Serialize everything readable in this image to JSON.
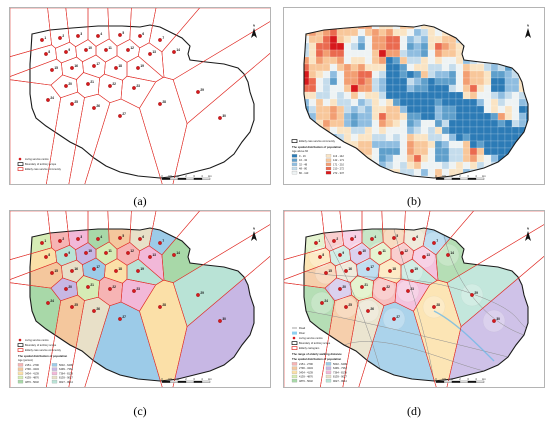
{
  "panels": [
    {
      "id": "a",
      "caption": "(a)",
      "legend": {
        "items": [
          "Living service centre",
          "Boundary of territory scope",
          "Elderly care service community"
        ]
      },
      "labels": [
        "1",
        "2",
        "3",
        "4",
        "5",
        "6",
        "7",
        "8",
        "9",
        "10",
        "11",
        "12",
        "13",
        "14",
        "15",
        "16",
        "17",
        "18",
        "19",
        "20",
        "21",
        "22",
        "23",
        "24",
        "25",
        "26",
        "27",
        "28",
        "29",
        "30"
      ]
    },
    {
      "id": "b",
      "caption": "(b)",
      "legend": {
        "items": [
          "Elderly care service community"
        ],
        "title": "The spatial distribution of population",
        "subtitle": "Age above 60",
        "classes": [
          "0 - 16",
          "16 - 32",
          "32 - 48",
          "48 - 80",
          "80 - 113",
          "113 - 142",
          "142 - 171",
          "171 - 210",
          "210 - 272",
          "272 - 337"
        ]
      }
    },
    {
      "id": "c",
      "caption": "(c)",
      "legend": {
        "items": [
          "Living service centre",
          "Boundary of territory scope",
          "Elderly care service community"
        ],
        "title": "The spatial distribution of population",
        "subtitle": "Age (person)",
        "classes": [
          "2151 - 2790",
          "2790 - 3434",
          "3434 - 4139",
          "4139 - 4876",
          "4876 - 5632",
          "5632 - 6499",
          "6499 - 7364",
          "7364 - 8139",
          "8139 - 9027",
          "9027 - 9914"
        ]
      },
      "labels": [
        "1",
        "2",
        "3",
        "4",
        "5",
        "6",
        "7",
        "8",
        "9",
        "10",
        "11",
        "12",
        "13",
        "14",
        "15",
        "16",
        "17",
        "18",
        "19",
        "20",
        "21",
        "22",
        "23",
        "24",
        "25",
        "26",
        "27",
        "28",
        "29",
        "30"
      ]
    },
    {
      "id": "d",
      "caption": "(d)",
      "legend": {
        "items": [
          "Road",
          "River",
          "Living service centre",
          "Boundary of territory scope",
          "Elderly cartogram"
        ],
        "title2": "The range of elderly walking distance",
        "title": "The spatial distribution of population",
        "classes": [
          "2151 - 2790",
          "2790 - 3434",
          "3434 - 4139",
          "4139 - 4876",
          "4876 - 5632",
          "5632 - 6499",
          "6499 - 7364",
          "7364 - 8139",
          "8139 - 9027",
          "9027 - 9914"
        ]
      },
      "labels": [
        "1",
        "2",
        "3",
        "4",
        "5",
        "6",
        "7",
        "8",
        "9",
        "10",
        "11",
        "12",
        "13",
        "14",
        "15",
        "16",
        "17",
        "18",
        "19",
        "20",
        "21",
        "22",
        "23",
        "24",
        "25",
        "26",
        "27",
        "28",
        "29",
        "30"
      ]
    }
  ],
  "north_label": "N",
  "scale_labels": [
    "0",
    "0.5",
    "1",
    "2",
    "3",
    "4",
    "km"
  ],
  "colors": {
    "boundary": "#1a1a1a",
    "voronoi": "#e0302a",
    "point": "#d7191c",
    "heat_low": "#2c7bb6",
    "heat_high": "#d7191c"
  }
}
